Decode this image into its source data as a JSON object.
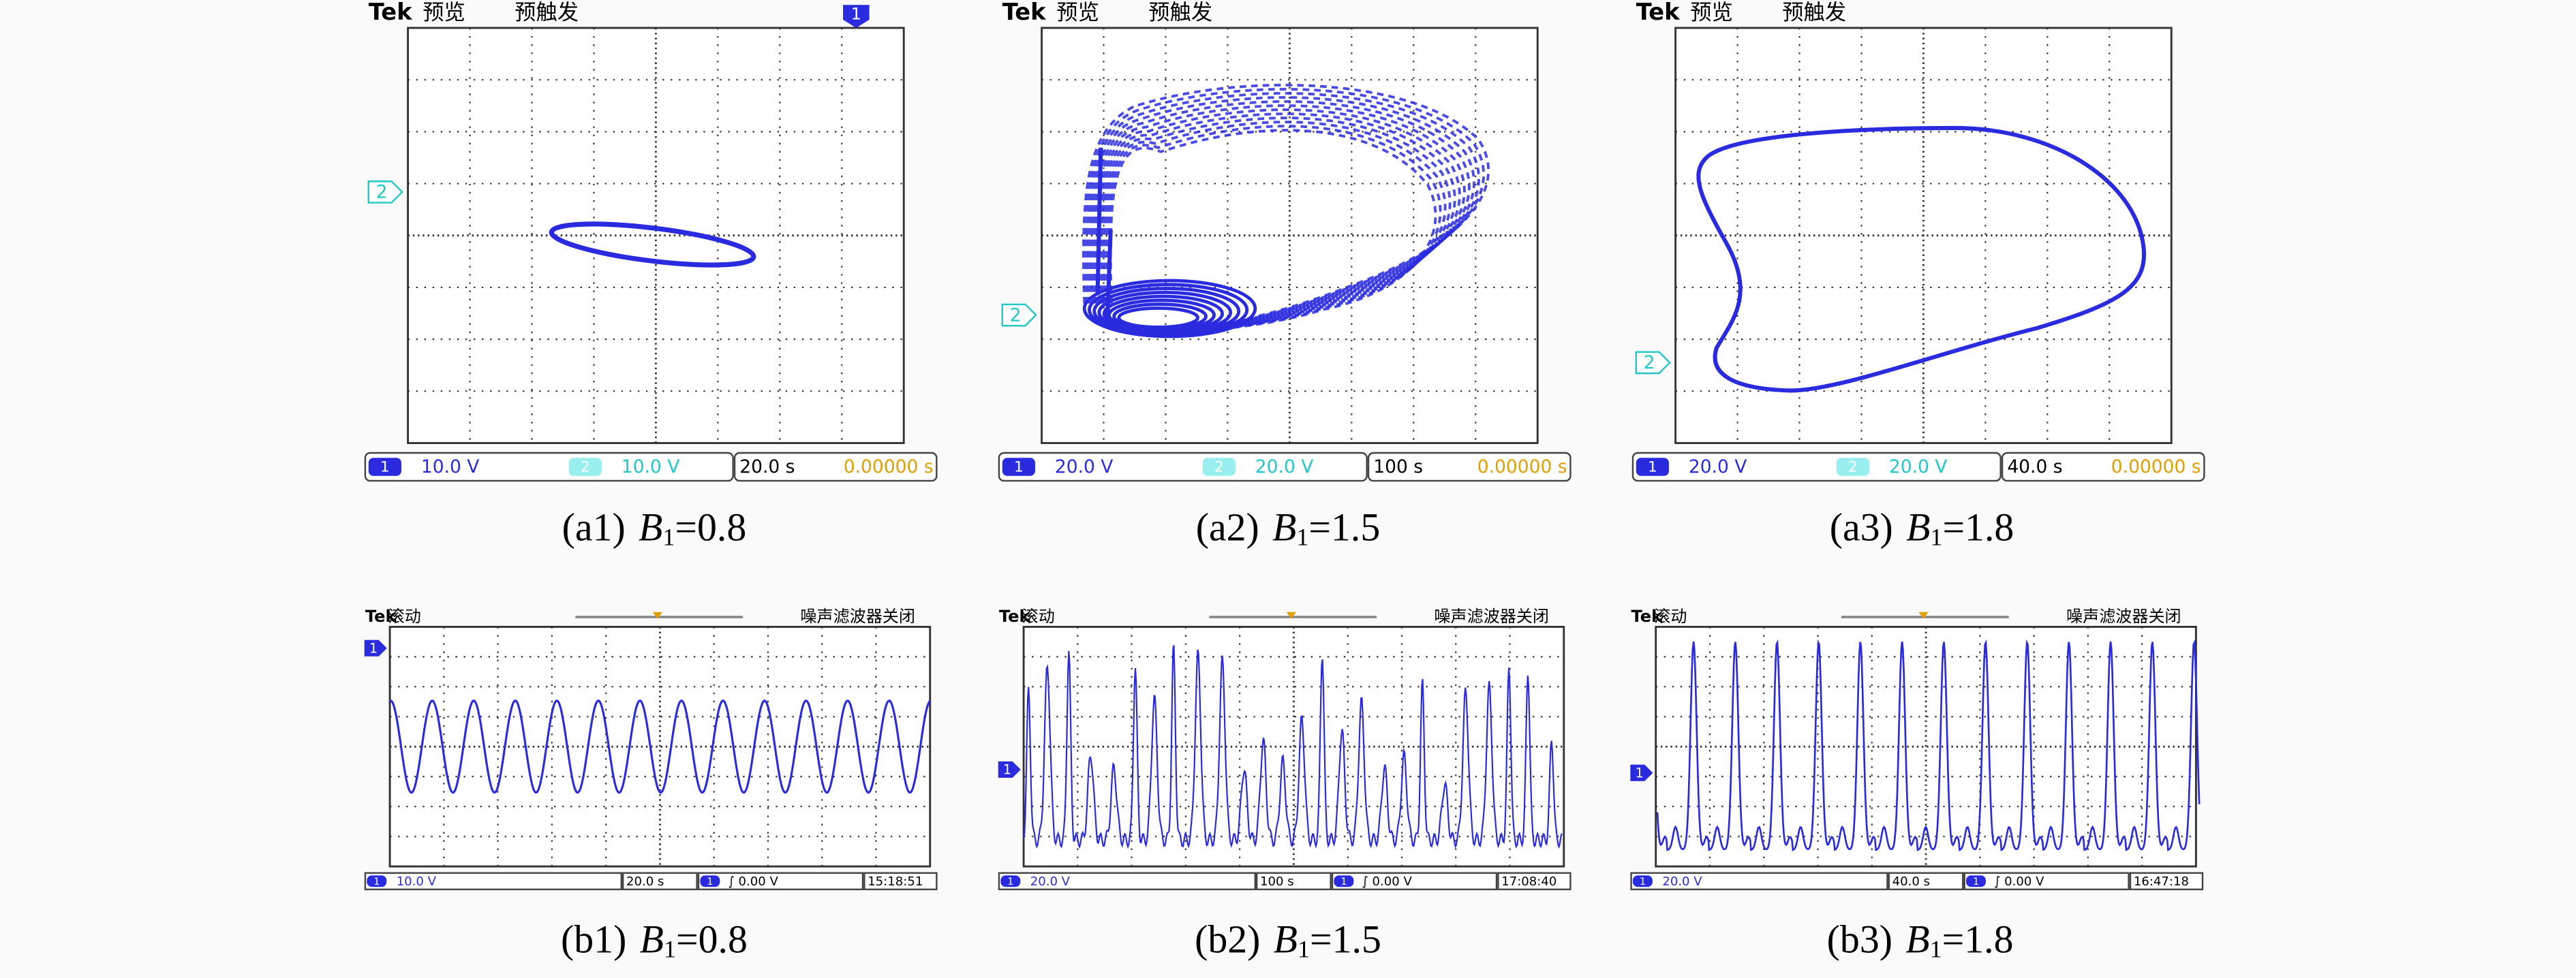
{
  "panels": [
    {
      "header": {
        "brand": "Tek",
        "mode": "预览",
        "trigger": "预触发"
      },
      "trigger_marker": "1",
      "channel_marker": "2",
      "status": {
        "ch1_badge": "1",
        "ch1_scale": "10.0 V",
        "ch2_badge": "2",
        "ch2_scale": "10.0 V",
        "timebase": "20.0 s",
        "position": "0.00000 s"
      },
      "caption": {
        "label": "(a1)",
        "symbol": "B",
        "subscript": "1",
        "value": "=0.8"
      }
    },
    {
      "header": {
        "brand": "Tek",
        "mode": "预览",
        "trigger": "预触发"
      },
      "channel_marker": "2",
      "status": {
        "ch1_badge": "1",
        "ch1_scale": "20.0 V",
        "ch2_badge": "2",
        "ch2_scale": "20.0 V",
        "timebase": "100 s",
        "position": "0.00000 s"
      },
      "caption": {
        "label": "(a2)",
        "symbol": "B",
        "subscript": "1",
        "value": "=1.5"
      }
    },
    {
      "header": {
        "brand": "Tek",
        "mode": "预览",
        "trigger": "预触发"
      },
      "channel_marker": "2",
      "status": {
        "ch1_badge": "1",
        "ch1_scale": "20.0 V",
        "ch2_badge": "2",
        "ch2_scale": "20.0 V",
        "timebase": "40.0 s",
        "position": "0.00000 s"
      },
      "caption": {
        "label": "(a3)",
        "symbol": "B",
        "subscript": "1",
        "value": "=1.8"
      }
    }
  ],
  "waveforms": [
    {
      "header": {
        "brand": "Tek",
        "mode": "滚动",
        "filter": "噪声滤波器关闭"
      },
      "channel_marker": "1",
      "status": {
        "ch_badge": "1",
        "ch_scale": "10.0 V",
        "timebase": "20.0 s",
        "trig_badge": "1",
        "trigger": "∫ 0.00 V",
        "time": "15:18:51"
      },
      "caption": {
        "label": "(b1)",
        "symbol": "B",
        "subscript": "1",
        "value": "=0.8"
      }
    },
    {
      "header": {
        "brand": "Tek",
        "mode": "滚动",
        "filter": "噪声滤波器关闭"
      },
      "channel_marker": "1",
      "status": {
        "ch_badge": "1",
        "ch_scale": "20.0 V",
        "timebase": "100 s",
        "trig_badge": "1",
        "trigger": "∫ 0.00 V",
        "time": "17:08:40"
      },
      "caption": {
        "label": "(b2)",
        "symbol": "B",
        "subscript": "1",
        "value": "=1.5"
      }
    },
    {
      "header": {
        "brand": "Tek",
        "mode": "滚动",
        "filter": "噪声滤波器关闭"
      },
      "channel_marker": "1",
      "status": {
        "ch_badge": "1",
        "ch_scale": "20.0 V",
        "timebase": "40.0 s",
        "trig_badge": "1",
        "trigger": "∫ 0.00 V",
        "time": "16:47:18"
      },
      "caption": {
        "label": "(b3)",
        "symbol": "B",
        "subscript": "1",
        "value": "=1.8"
      }
    }
  ]
}
